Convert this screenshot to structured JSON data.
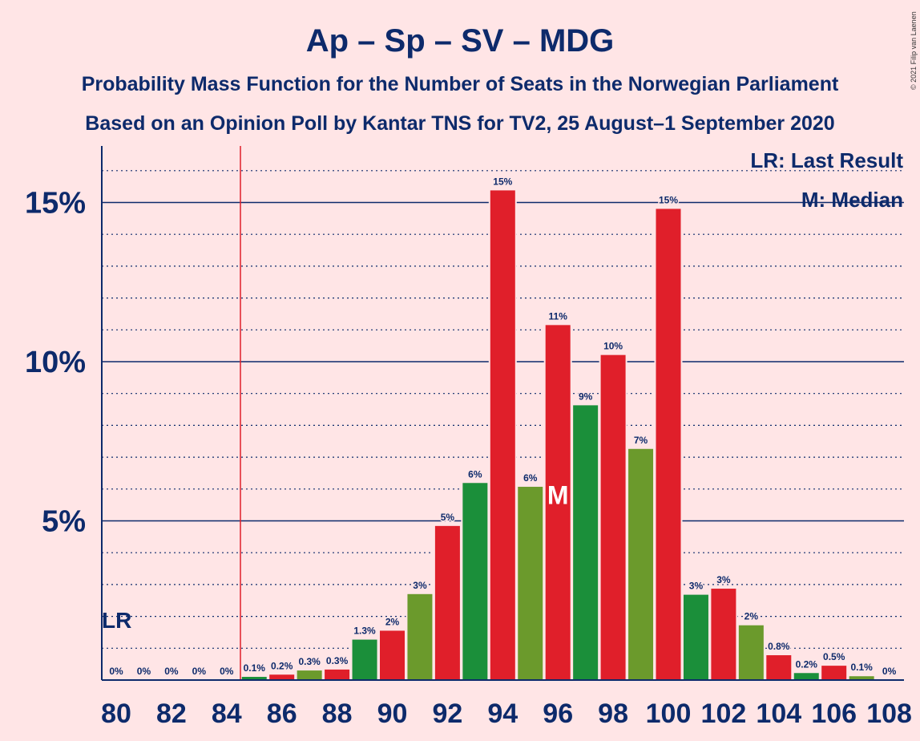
{
  "chart_data": {
    "type": "bar",
    "title": "Ap – Sp – SV – MDG",
    "subtitle1": "Probability Mass Function for the Number of Seats in the Norwegian Parliament",
    "subtitle2": "Based on an Opinion Poll by Kantar TNS for TV2, 25 August–1 September 2020",
    "copyright": "© 2021 Filip van Laenen",
    "legend": {
      "last_result": "LR: Last Result",
      "median": "M: Median",
      "placement": "top-right"
    },
    "last_result_marker": "LR",
    "median_marker": "M",
    "last_result_seat": 85,
    "median_seat": 96,
    "x_ticks": [
      "80",
      "82",
      "84",
      "86",
      "88",
      "90",
      "92",
      "94",
      "96",
      "98",
      "100",
      "102",
      "104",
      "106",
      "108"
    ],
    "y_ticks": [
      {
        "value": 5,
        "label": "5%"
      },
      {
        "value": 10,
        "label": "10%"
      },
      {
        "value": 15,
        "label": "15%"
      }
    ],
    "ylim": [
      0,
      16.8
    ],
    "xlim": [
      80,
      108
    ],
    "bars": [
      {
        "seat": 80,
        "value": 0,
        "label": "0%",
        "color": "#1b8f3a"
      },
      {
        "seat": 81,
        "value": 0,
        "label": "0%",
        "color": "#6b9a2c"
      },
      {
        "seat": 82,
        "value": 0,
        "label": "0%",
        "color": "#e01f2a"
      },
      {
        "seat": 83,
        "value": 0,
        "label": "0%",
        "color": "#1b8f3a"
      },
      {
        "seat": 84,
        "value": 0,
        "label": "0%",
        "color": "#6b9a2c"
      },
      {
        "seat": 85,
        "value": 0.1,
        "label": "0.1%",
        "color": "#1b8f3a"
      },
      {
        "seat": 86,
        "value": 0.17,
        "label": "0.2%",
        "color": "#e01f2a"
      },
      {
        "seat": 87,
        "value": 0.3,
        "label": "0.3%",
        "color": "#6b9a2c"
      },
      {
        "seat": 88,
        "value": 0.33,
        "label": "0.3%",
        "color": "#e01f2a"
      },
      {
        "seat": 89,
        "value": 1.27,
        "label": "1.3%",
        "color": "#1b8f3a"
      },
      {
        "seat": 90,
        "value": 1.55,
        "label": "2%",
        "color": "#e01f2a"
      },
      {
        "seat": 91,
        "value": 2.7,
        "label": "3%",
        "color": "#6b9a2c"
      },
      {
        "seat": 92,
        "value": 4.84,
        "label": "5%",
        "color": "#e01f2a"
      },
      {
        "seat": 93,
        "value": 6.19,
        "label": "6%",
        "color": "#1b8f3a"
      },
      {
        "seat": 94,
        "value": 15.38,
        "label": "15%",
        "color": "#e01f2a"
      },
      {
        "seat": 95,
        "value": 6.07,
        "label": "6%",
        "color": "#6b9a2c"
      },
      {
        "seat": 96,
        "value": 11.15,
        "label": "11%",
        "color": "#e01f2a"
      },
      {
        "seat": 97,
        "value": 8.63,
        "label": "9%",
        "color": "#1b8f3a"
      },
      {
        "seat": 98,
        "value": 10.21,
        "label": "10%",
        "color": "#e01f2a"
      },
      {
        "seat": 99,
        "value": 7.26,
        "label": "7%",
        "color": "#6b9a2c"
      },
      {
        "seat": 100,
        "value": 14.8,
        "label": "15%",
        "color": "#e01f2a"
      },
      {
        "seat": 101,
        "value": 2.68,
        "label": "3%",
        "color": "#1b8f3a"
      },
      {
        "seat": 102,
        "value": 2.87,
        "label": "3%",
        "color": "#e01f2a"
      },
      {
        "seat": 103,
        "value": 1.72,
        "label": "2%",
        "color": "#6b9a2c"
      },
      {
        "seat": 104,
        "value": 0.78,
        "label": "0.8%",
        "color": "#e01f2a"
      },
      {
        "seat": 105,
        "value": 0.22,
        "label": "0.2%",
        "color": "#1b8f3a"
      },
      {
        "seat": 106,
        "value": 0.45,
        "label": "0.5%",
        "color": "#e01f2a"
      },
      {
        "seat": 107,
        "value": 0.12,
        "label": "0.1%",
        "color": "#6b9a2c"
      },
      {
        "seat": 108,
        "value": 0,
        "label": "0%",
        "color": "#e01f2a"
      }
    ],
    "colors": {
      "background": "#ffe5e6",
      "text": "#0d2a6b",
      "axis": "#0d2a6b",
      "last_result_line": "#e01f2a"
    }
  }
}
